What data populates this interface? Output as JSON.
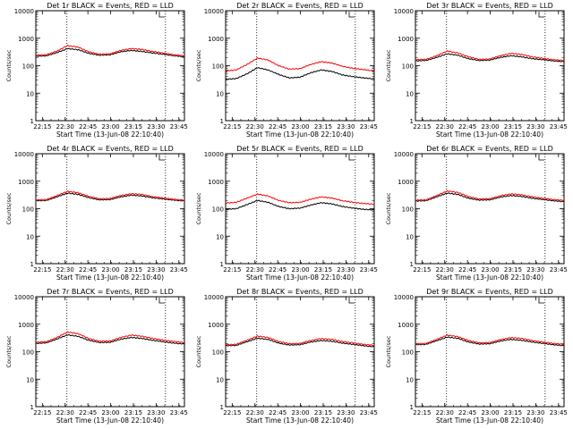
{
  "chart_data": [
    {
      "type": "line",
      "title": "Det 1r BLACK = Events, RED = LLD",
      "ylabel": "Counts/sec",
      "xlabel": "Start Time (13-Jun-08 22:10:40)",
      "yscale": "log",
      "ylim": [
        1,
        10000
      ],
      "x_ticks": [
        "22:15",
        "22:30",
        "22:45",
        "23:00",
        "23:15",
        "23:30",
        "23:45"
      ],
      "y_ticks": [
        "1",
        "10",
        "100",
        "1000",
        "10000"
      ],
      "x": [
        0,
        7,
        14,
        21,
        28,
        35,
        42,
        49,
        56,
        63,
        70,
        77,
        84,
        91,
        98
      ],
      "series": [
        {
          "color": "#000000",
          "values": [
            220,
            230,
            300,
            420,
            380,
            280,
            240,
            250,
            320,
            360,
            330,
            290,
            260,
            230,
            210
          ]
        },
        {
          "color": "#ff0000",
          "values": [
            240,
            250,
            340,
            540,
            470,
            320,
            260,
            270,
            360,
            420,
            390,
            330,
            290,
            250,
            230
          ]
        }
      ]
    },
    {
      "type": "line",
      "title": "Det 2r BLACK = Events, RED = LLD",
      "ylabel": "Counts/sec",
      "xlabel": "Start Time (13-Jun-08 22:10:40)",
      "yscale": "log",
      "ylim": [
        1,
        10000
      ],
      "x_ticks": [
        "22:15",
        "22:30",
        "22:45",
        "23:00",
        "23:15",
        "23:30",
        "23:45"
      ],
      "y_ticks": [
        "1",
        "10",
        "100",
        "1000",
        "10000"
      ],
      "x": [
        0,
        7,
        14,
        21,
        28,
        35,
        42,
        49,
        56,
        63,
        70,
        77,
        84,
        91,
        98
      ],
      "series": [
        {
          "color": "#000000",
          "values": [
            32,
            34,
            50,
            85,
            70,
            48,
            36,
            38,
            55,
            70,
            62,
            46,
            40,
            36,
            33
          ]
        },
        {
          "color": "#ff0000",
          "values": [
            65,
            70,
            110,
            190,
            160,
            100,
            75,
            78,
            110,
            140,
            125,
            95,
            80,
            72,
            64
          ]
        }
      ]
    },
    {
      "type": "line",
      "title": "Det 3r BLACK = Events, RED = LLD",
      "ylabel": "Counts/sec",
      "xlabel": "Start Time (13-Jun-08 22:10:40)",
      "yscale": "log",
      "ylim": [
        1,
        10000
      ],
      "x_ticks": [
        "22:15",
        "22:30",
        "22:45",
        "23:00",
        "23:15",
        "23:30",
        "23:45"
      ],
      "y_ticks": [
        "1",
        "10",
        "100",
        "1000",
        "10000"
      ],
      "x": [
        0,
        7,
        14,
        21,
        28,
        35,
        42,
        49,
        56,
        63,
        70,
        77,
        84,
        91,
        98
      ],
      "series": [
        {
          "color": "#000000",
          "values": [
            150,
            155,
            200,
            270,
            240,
            180,
            155,
            160,
            200,
            230,
            210,
            180,
            165,
            150,
            140
          ]
        },
        {
          "color": "#ff0000",
          "values": [
            165,
            170,
            230,
            340,
            290,
            210,
            170,
            175,
            230,
            280,
            255,
            210,
            185,
            165,
            155
          ]
        }
      ]
    },
    {
      "type": "line",
      "title": "Det 4r BLACK = Events, RED = LLD",
      "ylabel": "Counts/sec",
      "xlabel": "Start Time (13-Jun-08 22:10:40)",
      "yscale": "log",
      "ylim": [
        1,
        10000
      ],
      "x_ticks": [
        "22:15",
        "22:30",
        "22:45",
        "23:00",
        "23:15",
        "23:30",
        "23:45"
      ],
      "y_ticks": [
        "1",
        "10",
        "100",
        "1000",
        "10000"
      ],
      "x": [
        0,
        7,
        14,
        21,
        28,
        35,
        42,
        49,
        56,
        63,
        70,
        77,
        84,
        91,
        98
      ],
      "series": [
        {
          "color": "#000000",
          "values": [
            195,
            200,
            270,
            370,
            330,
            250,
            210,
            215,
            270,
            310,
            290,
            250,
            225,
            205,
            190
          ]
        },
        {
          "color": "#ff0000",
          "values": [
            210,
            215,
            300,
            430,
            380,
            280,
            230,
            235,
            300,
            350,
            330,
            275,
            245,
            220,
            205
          ]
        }
      ]
    },
    {
      "type": "line",
      "title": "Det 5r BLACK = Events, RED = LLD",
      "ylabel": "Counts/sec",
      "xlabel": "Start Time (13-Jun-08 22:10:40)",
      "yscale": "log",
      "ylim": [
        1,
        10000
      ],
      "x_ticks": [
        "22:15",
        "22:30",
        "22:45",
        "23:00",
        "23:15",
        "23:30",
        "23:45"
      ],
      "y_ticks": [
        "1",
        "10",
        "100",
        "1000",
        "10000"
      ],
      "x": [
        0,
        7,
        14,
        21,
        28,
        35,
        42,
        49,
        56,
        63,
        70,
        77,
        84,
        91,
        98
      ],
      "series": [
        {
          "color": "#000000",
          "values": [
            95,
            100,
            140,
            200,
            170,
            120,
            100,
            105,
            135,
            165,
            150,
            120,
            105,
            95,
            90
          ]
        },
        {
          "color": "#ff0000",
          "values": [
            160,
            170,
            240,
            340,
            290,
            200,
            165,
            170,
            220,
            270,
            245,
            195,
            170,
            155,
            145
          ]
        }
      ]
    },
    {
      "type": "line",
      "title": "Det 6r BLACK = Events, RED = LLD",
      "ylabel": "Counts/sec",
      "xlabel": "Start Time (13-Jun-08 22:10:40)",
      "yscale": "log",
      "ylim": [
        1,
        10000
      ],
      "x_ticks": [
        "22:15",
        "22:30",
        "22:45",
        "23:00",
        "23:15",
        "23:30",
        "23:45"
      ],
      "y_ticks": [
        "1",
        "10",
        "100",
        "1000",
        "10000"
      ],
      "x": [
        0,
        7,
        14,
        21,
        28,
        35,
        42,
        49,
        56,
        63,
        70,
        77,
        84,
        91,
        98
      ],
      "series": [
        {
          "color": "#000000",
          "values": [
            190,
            195,
            270,
            370,
            330,
            240,
            205,
            210,
            265,
            300,
            280,
            240,
            215,
            195,
            180
          ]
        },
        {
          "color": "#ff0000",
          "values": [
            205,
            210,
            300,
            440,
            390,
            275,
            225,
            230,
            295,
            345,
            320,
            270,
            240,
            215,
            200
          ]
        }
      ]
    },
    {
      "type": "line",
      "title": "Det 7r BLACK = Events, RED = LLD",
      "ylabel": "Counts/sec",
      "xlabel": "Start Time (13-Jun-08 22:10:40)",
      "yscale": "log",
      "ylim": [
        1,
        10000
      ],
      "x_ticks": [
        "22:15",
        "22:30",
        "22:45",
        "23:00",
        "23:15",
        "23:30",
        "23:45"
      ],
      "y_ticks": [
        "1",
        "10",
        "100",
        "1000",
        "10000"
      ],
      "x": [
        0,
        7,
        14,
        21,
        28,
        35,
        42,
        49,
        56,
        63,
        70,
        77,
        84,
        91,
        98
      ],
      "series": [
        {
          "color": "#000000",
          "values": [
            200,
            210,
            290,
            410,
            360,
            260,
            215,
            220,
            285,
            330,
            305,
            260,
            230,
            205,
            190
          ]
        },
        {
          "color": "#ff0000",
          "values": [
            220,
            230,
            330,
            520,
            450,
            300,
            240,
            245,
            330,
            400,
            365,
            305,
            265,
            235,
            215
          ]
        }
      ]
    },
    {
      "type": "line",
      "title": "Det 8r BLACK = Events, RED = LLD",
      "ylabel": "Counts/sec",
      "xlabel": "Start Time (13-Jun-08 22:10:40)",
      "yscale": "log",
      "ylim": [
        1,
        10000
      ],
      "x_ticks": [
        "22:15",
        "22:30",
        "22:45",
        "23:00",
        "23:15",
        "23:30",
        "23:45"
      ],
      "y_ticks": [
        "1",
        "10",
        "100",
        "1000",
        "10000"
      ],
      "x": [
        0,
        7,
        14,
        21,
        28,
        35,
        42,
        49,
        56,
        63,
        70,
        77,
        84,
        91,
        98
      ],
      "series": [
        {
          "color": "#000000",
          "values": [
            165,
            170,
            230,
            310,
            280,
            205,
            175,
            180,
            225,
            255,
            240,
            205,
            185,
            165,
            150
          ]
        },
        {
          "color": "#ff0000",
          "values": [
            180,
            185,
            260,
            370,
            330,
            235,
            195,
            200,
            255,
            300,
            280,
            235,
            210,
            185,
            170
          ]
        }
      ]
    },
    {
      "type": "line",
      "title": "Det 9r BLACK = Events, RED = LLD",
      "ylabel": "Counts/sec",
      "xlabel": "Start Time (13-Jun-08 22:10:40)",
      "yscale": "log",
      "ylim": [
        1,
        10000
      ],
      "x_ticks": [
        "22:15",
        "22:30",
        "22:45",
        "23:00",
        "23:15",
        "23:30",
        "23:45"
      ],
      "y_ticks": [
        "1",
        "10",
        "100",
        "1000",
        "10000"
      ],
      "x": [
        0,
        7,
        14,
        21,
        28,
        35,
        42,
        49,
        56,
        63,
        70,
        77,
        84,
        91,
        98
      ],
      "series": [
        {
          "color": "#000000",
          "values": [
            180,
            185,
            250,
            340,
            305,
            225,
            190,
            195,
            245,
            280,
            260,
            225,
            200,
            180,
            165
          ]
        },
        {
          "color": "#ff0000",
          "values": [
            195,
            200,
            280,
            400,
            355,
            255,
            210,
            215,
            275,
            325,
            305,
            255,
            225,
            200,
            185
          ]
        }
      ]
    }
  ]
}
